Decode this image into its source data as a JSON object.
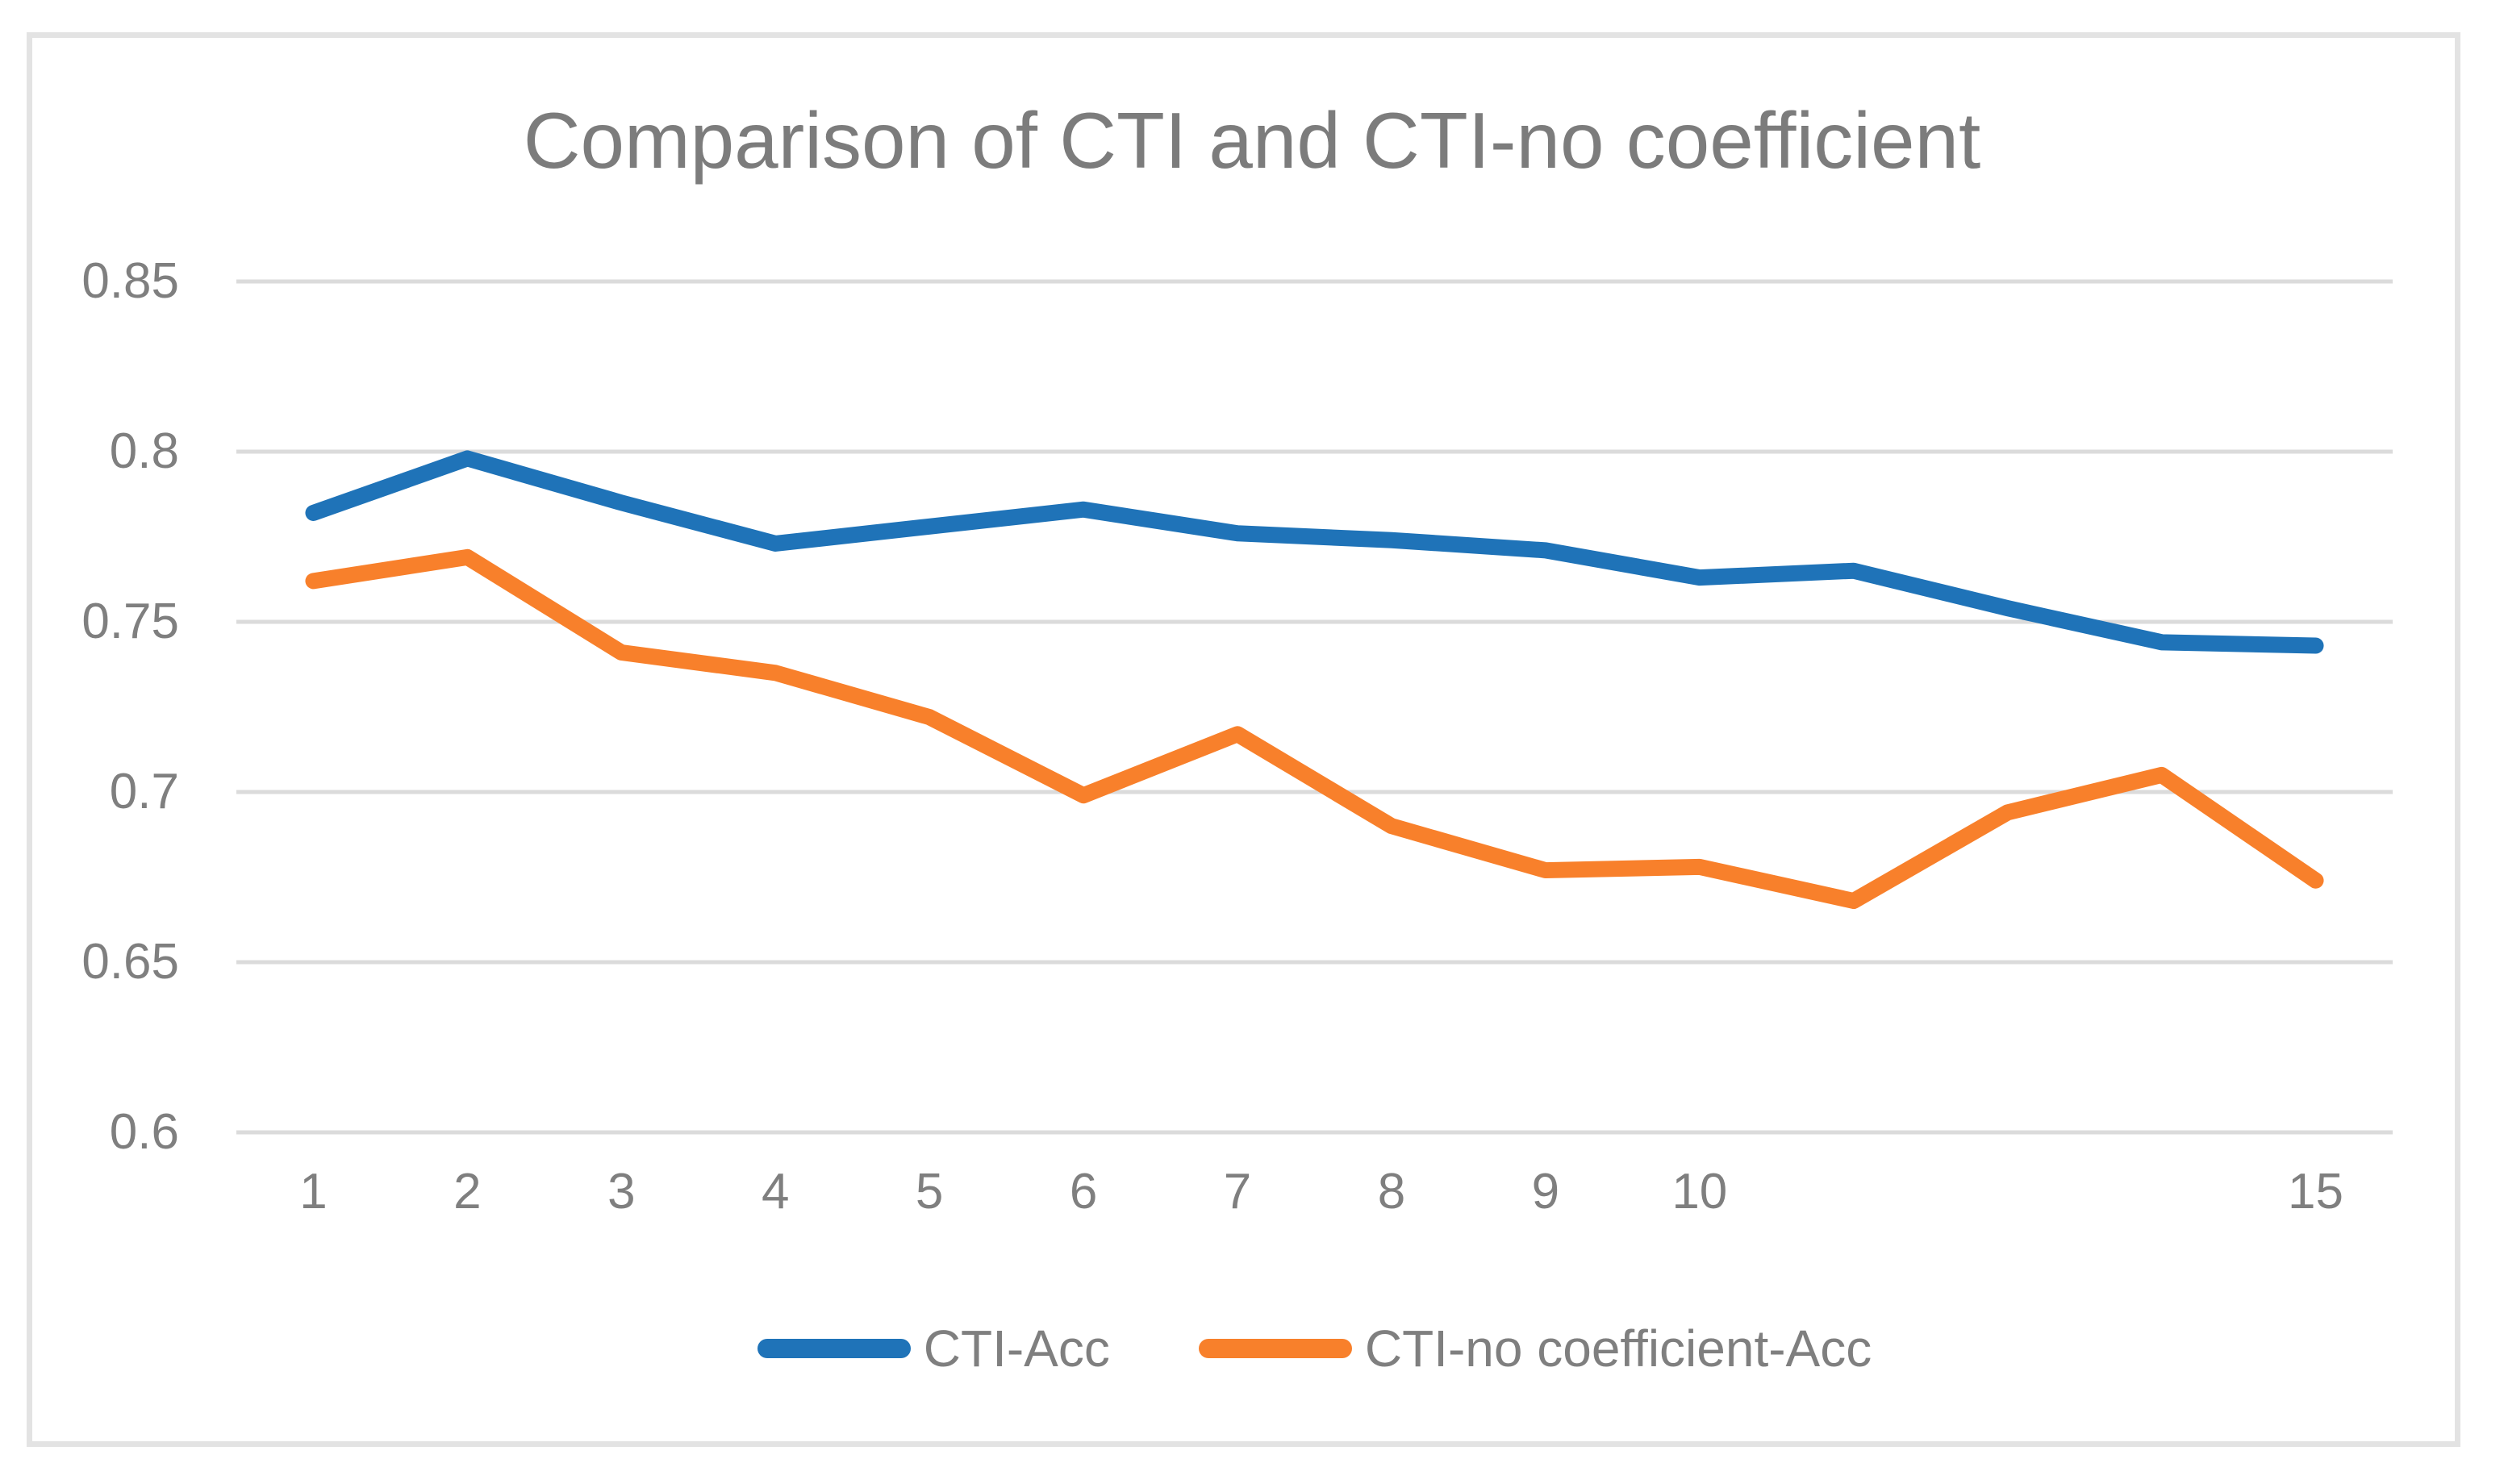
{
  "chart_data": {
    "type": "line",
    "title": "Comparison of CTI and CTI-no coefficient",
    "x_tick_labels": [
      "1",
      "2",
      "3",
      "4",
      "5",
      "6",
      "7",
      "8",
      "9",
      "10",
      "",
      "",
      "",
      "15"
    ],
    "y_tick_labels": [
      "0.85",
      "0.8",
      "0.75",
      "0.7",
      "0.65",
      "0.6"
    ],
    "y_ticks": [
      0.85,
      0.8,
      0.75,
      0.7,
      0.65,
      0.6
    ],
    "ylim": [
      0.6,
      0.85
    ],
    "grid": "horizontal",
    "legend_position": "bottom",
    "grid_color": "#DBDBDB",
    "series": [
      {
        "name": "CTI-Acc",
        "color": "#1F73B8",
        "values": [
          0.782,
          0.798,
          0.785,
          0.773,
          0.778,
          0.783,
          0.776,
          0.774,
          0.771,
          0.763,
          0.765,
          0.754,
          0.744,
          0.743
        ]
      },
      {
        "name": "CTI-no coefficient-Acc",
        "color": "#F8802B",
        "values": [
          0.762,
          0.769,
          0.741,
          0.735,
          0.722,
          0.699,
          0.717,
          0.69,
          0.677,
          0.678,
          0.668,
          0.694,
          0.705,
          0.674
        ]
      }
    ]
  }
}
